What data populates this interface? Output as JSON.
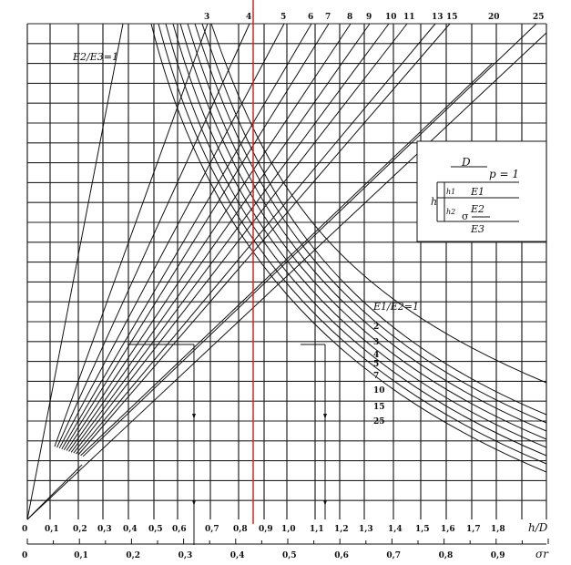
{
  "chart_data": {
    "type": "line",
    "title": "",
    "xlabel": "h/D",
    "x2label": "σr",
    "x_ticks": [
      "0",
      "0,1",
      "0,2",
      "0,3",
      "0,4",
      "0,5",
      "0,6",
      "0,7",
      "0,8",
      "0,9",
      "1,0",
      "1,1",
      "1,2",
      "1,3",
      "1,4",
      "1,5",
      "1,6",
      "1,7",
      "1,8"
    ],
    "sigma_ticks": [
      "0",
      "0,1",
      "0,2",
      "0,3",
      "0,4",
      "0,5",
      "0,6",
      "0,7",
      "0,8",
      "0,9"
    ],
    "sigma_range": [
      0,
      1.0
    ],
    "e2e3_label": "E2/E3=1",
    "e2e3_series": [
      "3",
      "4",
      "5",
      "6",
      "7",
      "8",
      "9",
      "10",
      "11",
      "13",
      "15",
      "20",
      "25"
    ],
    "e1e2_label": "E1/E2=1",
    "e1e2_series": [
      "2",
      "3",
      "4",
      "5",
      "7",
      "10",
      "15",
      "25"
    ],
    "highlight_hD": 0.88,
    "example_hD": [
      0.65,
      1.15
    ],
    "grid": true,
    "inset": {
      "D": "D",
      "p": "p = 1",
      "h": "h",
      "h1": "h1",
      "h2": "h2",
      "E1": "E1",
      "E2": "E2",
      "E3": "E3",
      "sigma": "σ"
    },
    "colors": {
      "highlight": "#e02020",
      "ink": "#111111"
    }
  }
}
